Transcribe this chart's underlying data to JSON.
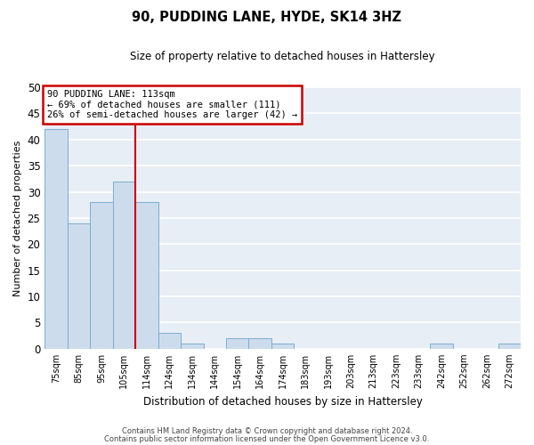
{
  "title": "90, PUDDING LANE, HYDE, SK14 3HZ",
  "subtitle": "Size of property relative to detached houses in Hattersley",
  "xlabel": "Distribution of detached houses by size in Hattersley",
  "ylabel": "Number of detached properties",
  "bar_labels": [
    "75sqm",
    "85sqm",
    "95sqm",
    "105sqm",
    "114sqm",
    "124sqm",
    "134sqm",
    "144sqm",
    "154sqm",
    "164sqm",
    "174sqm",
    "183sqm",
    "193sqm",
    "203sqm",
    "213sqm",
    "223sqm",
    "233sqm",
    "242sqm",
    "252sqm",
    "262sqm",
    "272sqm"
  ],
  "bar_values": [
    42,
    24,
    28,
    32,
    28,
    3,
    1,
    0,
    2,
    2,
    1,
    0,
    0,
    0,
    0,
    0,
    0,
    1,
    0,
    0,
    1
  ],
  "bar_color": "#cddcec",
  "bar_edgecolor": "#7badd1",
  "highlight_x": "114sqm",
  "highlight_color": "#cc0000",
  "ylim": [
    0,
    50
  ],
  "yticks": [
    0,
    5,
    10,
    15,
    20,
    25,
    30,
    35,
    40,
    45,
    50
  ],
  "annotation_title": "90 PUDDING LANE: 113sqm",
  "annotation_line1": "← 69% of detached houses are smaller (111)",
  "annotation_line2": "26% of semi-detached houses are larger (42) →",
  "annotation_box_edgecolor": "#cc0000",
  "footer1": "Contains HM Land Registry data © Crown copyright and database right 2024.",
  "footer2": "Contains public sector information licensed under the Open Government Licence v3.0.",
  "fig_bg_color": "#ffffff",
  "plot_bg_color": "#e8eef5",
  "grid_color": "#ffffff"
}
